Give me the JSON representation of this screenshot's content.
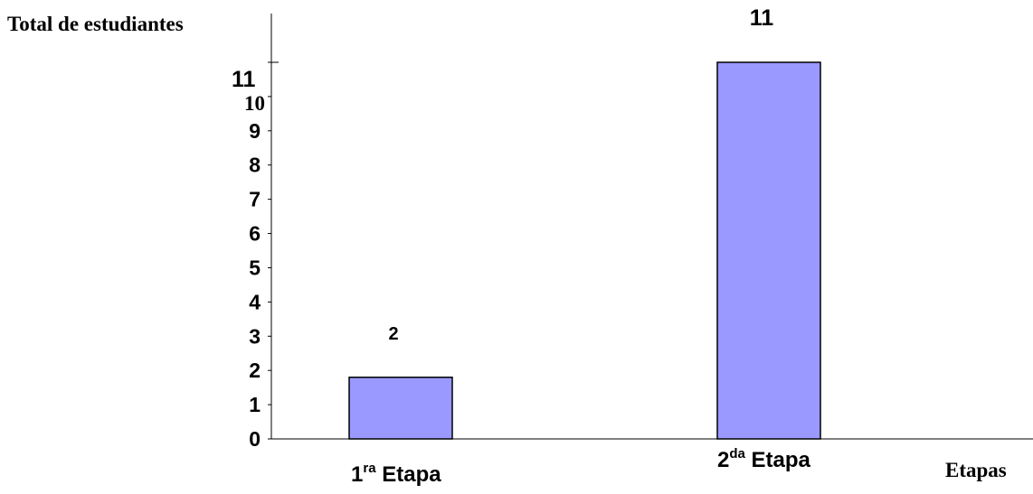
{
  "chart_data": {
    "type": "bar",
    "ylabel": "Total de estudiantes",
    "xlabel": "Etapas",
    "categories": [
      {
        "base": "1",
        "sup": "ra",
        "rest": " Etapa"
      },
      {
        "base": "2",
        "sup": "da",
        "rest": " Etapa"
      }
    ],
    "values": [
      1.8,
      11.0
    ],
    "data_labels": [
      "2",
      "11"
    ],
    "y_ticks": [
      {
        "value": 0,
        "label": "0"
      },
      {
        "value": 1,
        "label": "1"
      },
      {
        "value": 2,
        "label": "2"
      },
      {
        "value": 3,
        "label": "3"
      },
      {
        "value": 4,
        "label": "4"
      },
      {
        "value": 5,
        "label": "5"
      },
      {
        "value": 6,
        "label": "6"
      },
      {
        "value": 7,
        "label": "7"
      },
      {
        "value": 8,
        "label": "8"
      },
      {
        "value": 9,
        "label": "9"
      },
      {
        "value": 10,
        "label": "10"
      },
      {
        "value": 11,
        "label": "11"
      }
    ],
    "ylim": [
      0,
      11
    ],
    "grid": false,
    "legend": "none",
    "bar_color": "#9999ff",
    "bar_edge_color": "#000000"
  }
}
